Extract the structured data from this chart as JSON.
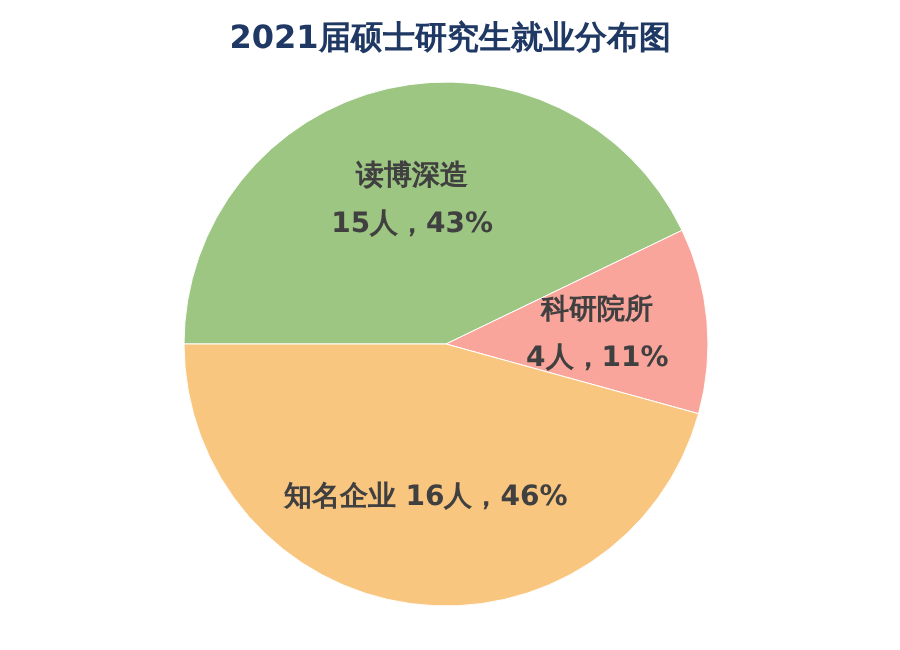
{
  "chart_data": {
    "type": "pie",
    "title": "2021届硕士研究生就业分布图",
    "categories": [
      "读博深造",
      "科研院所",
      "知名企业"
    ],
    "values": [
      15,
      4,
      16
    ],
    "value_labels": [
      "15人，43%",
      "4人，11%",
      "16人，46%"
    ],
    "colors": [
      "#9ec683",
      "#f9a59b",
      "#f9c680"
    ]
  }
}
